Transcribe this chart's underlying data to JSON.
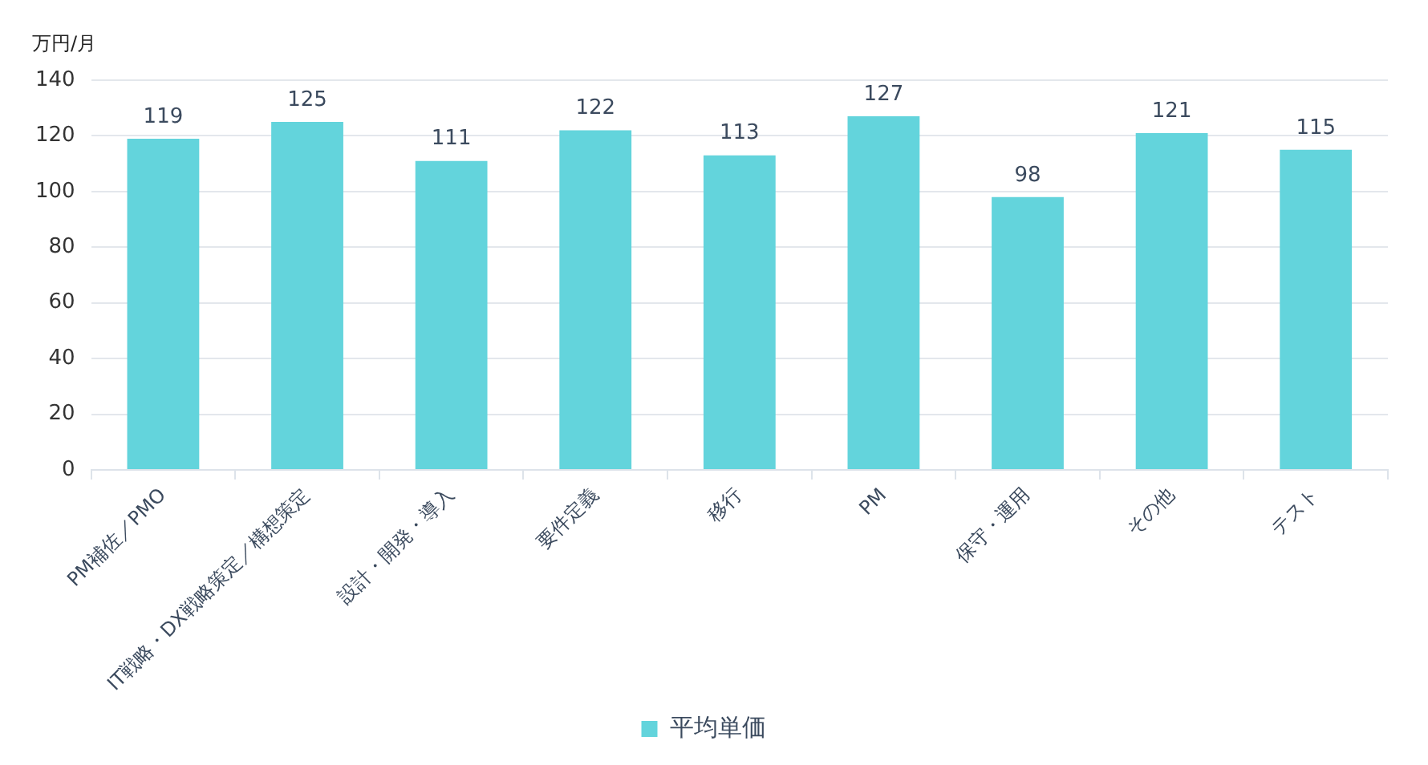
{
  "chart_data": {
    "type": "bar",
    "ylabel": "万円/月",
    "categories": [
      "PM補佐／PMO",
      "IT戦略・DX戦略策定／構想策定",
      "設計・開発・導入",
      "要件定義",
      "移行",
      "PM",
      "保守・運用",
      "その他",
      "テスト"
    ],
    "series": [
      {
        "name": "平均単価",
        "color": "#63d4dc",
        "values": [
          119,
          125,
          111,
          122,
          113,
          127,
          98,
          121,
          115
        ]
      }
    ],
    "ylim": [
      0,
      140
    ],
    "yticks": [
      0,
      20,
      40,
      60,
      80,
      100,
      120,
      140
    ],
    "grid": "y",
    "legend": "bottom",
    "data_labels": true
  }
}
